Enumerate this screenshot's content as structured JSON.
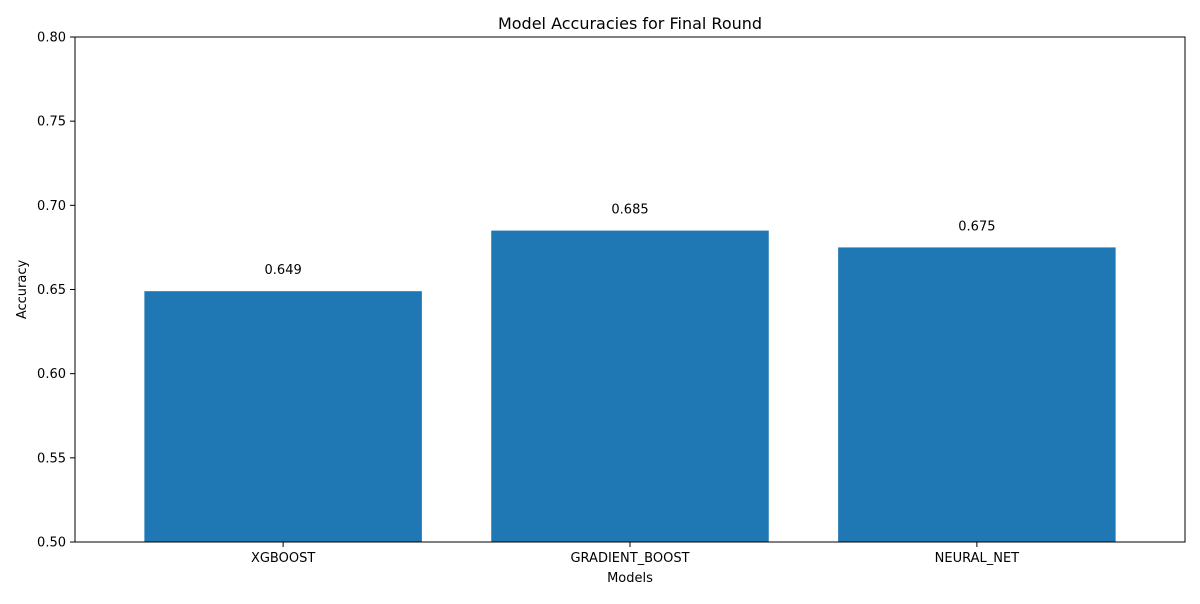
{
  "chart_data": {
    "type": "bar",
    "title": "Model Accuracies for Final Round",
    "xlabel": "Models",
    "ylabel": "Accuracy",
    "categories": [
      "XGBOOST",
      "GRADIENT_BOOST",
      "NEURAL_NET"
    ],
    "values": [
      0.649,
      0.685,
      0.675
    ],
    "value_labels": [
      "0.649",
      "0.685",
      "0.675"
    ],
    "ylim": [
      0.5,
      0.8
    ],
    "yticks": [
      0.5,
      0.55,
      0.6,
      0.65,
      0.7,
      0.75,
      0.8
    ],
    "ytick_labels": [
      "0.50",
      "0.55",
      "0.60",
      "0.65",
      "0.70",
      "0.75",
      "0.80"
    ],
    "bar_color": "#1f77b4",
    "grid": false,
    "legend": false
  }
}
